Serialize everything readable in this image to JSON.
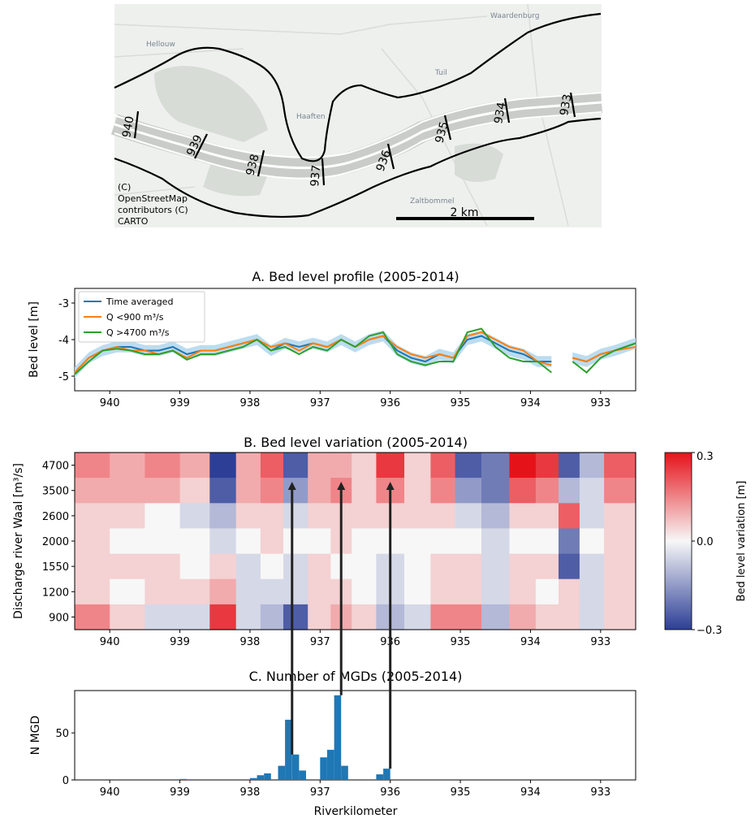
{
  "map": {
    "attribution": [
      "(C)",
      "OpenStreetMap",
      "contributors (C)",
      "CARTO"
    ],
    "scale_label": "2 km",
    "place_names": [
      "Hellouw",
      "Tuil",
      "Waardenburg",
      "Haaften",
      "Zaltbommel"
    ],
    "km_markers": [
      "940",
      "939",
      "938",
      "937",
      "936",
      "935",
      "934",
      "933"
    ]
  },
  "chart_data": [
    {
      "type": "line",
      "title": "A. Bed level profile (2005-2014)",
      "xlabel": "",
      "ylabel": "Bed level [m]",
      "xlim": [
        940.5,
        932.5
      ],
      "ylim": [
        -5.4,
        -2.6
      ],
      "xticks": [
        "940",
        "939",
        "938",
        "937",
        "936",
        "935",
        "934",
        "933"
      ],
      "yticks": [
        "-3",
        "-4",
        "-5"
      ],
      "legend_placement": "top-left",
      "legend": [
        "Time averaged",
        "Q <900 m³/s",
        "Q >4700 m³/s"
      ],
      "colors": {
        "band": "#bcdcef",
        "Time averaged": "#1f77b4",
        "Q <900": "#ff7f0e",
        "Q >4700": "#2ca02c"
      },
      "x": [
        940.5,
        940.3,
        940.1,
        939.9,
        939.7,
        939.5,
        939.3,
        939.1,
        938.9,
        938.7,
        938.5,
        938.3,
        938.1,
        937.9,
        937.7,
        937.5,
        937.3,
        937.1,
        936.9,
        936.7,
        936.5,
        936.3,
        936.1,
        935.9,
        935.7,
        935.5,
        935.3,
        935.1,
        934.9,
        934.7,
        934.5,
        934.3,
        934.1,
        933.9,
        933.7,
        933.6,
        933.4,
        933.2,
        933.0,
        932.8,
        932.5
      ],
      "series": [
        {
          "name": "Time averaged",
          "values": [
            -4.9,
            -4.5,
            -4.3,
            -4.2,
            -4.2,
            -4.3,
            -4.3,
            -4.2,
            -4.4,
            -4.3,
            -4.3,
            -4.2,
            -4.1,
            -4.0,
            -4.3,
            -4.1,
            -4.2,
            -4.1,
            -4.2,
            -4.0,
            -4.2,
            -4.0,
            -3.9,
            -4.3,
            -4.5,
            -4.6,
            -4.4,
            -4.5,
            -4.0,
            -3.9,
            -4.1,
            -4.3,
            -4.4,
            -4.6,
            -4.6,
            null,
            -4.5,
            -4.6,
            -4.4,
            -4.3,
            -4.1
          ]
        },
        {
          "name": "Q <900 m³/s",
          "values": [
            -4.9,
            -4.5,
            -4.3,
            -4.2,
            -4.3,
            -4.3,
            -4.4,
            -4.3,
            -4.5,
            -4.3,
            -4.3,
            -4.2,
            -4.1,
            -4.0,
            -4.2,
            -4.1,
            -4.3,
            -4.1,
            -4.2,
            -4.0,
            -4.2,
            -4.0,
            -3.9,
            -4.2,
            -4.4,
            -4.5,
            -4.4,
            -4.5,
            -3.9,
            -3.8,
            -4.0,
            -4.2,
            -4.3,
            -4.6,
            -4.7,
            null,
            -4.5,
            -4.6,
            -4.4,
            -4.3,
            -4.2
          ]
        },
        {
          "name": "Q >4700 m³/s",
          "values": [
            -4.95,
            -4.6,
            -4.3,
            -4.25,
            -4.3,
            -4.4,
            -4.4,
            -4.3,
            -4.55,
            -4.4,
            -4.4,
            -4.3,
            -4.2,
            -4.0,
            -4.3,
            -4.2,
            -4.4,
            -4.2,
            -4.3,
            -4.0,
            -4.2,
            -3.9,
            -3.8,
            -4.4,
            -4.6,
            -4.7,
            -4.6,
            -4.6,
            -3.8,
            -3.7,
            -4.2,
            -4.5,
            -4.6,
            -4.6,
            -4.9,
            null,
            -4.6,
            -4.9,
            -4.5,
            -4.3,
            -4.1
          ]
        }
      ]
    },
    {
      "type": "heatmap",
      "title": "B. Bed level variation (2005-2014)",
      "xlabel": "",
      "ylabel": "Discharge river Waal [m³/s]",
      "xlim": [
        940.5,
        932.5
      ],
      "xticks": [
        "940",
        "939",
        "938",
        "937",
        "936",
        "935",
        "934",
        "933"
      ],
      "rows": [
        "4700",
        "3500",
        "2600",
        "2000",
        "1550",
        "1200",
        "900"
      ],
      "colorbar": {
        "label": "Bed level variation [m]",
        "ticks": [
          "0.3",
          "0.0",
          "−0.3"
        ],
        "range": [
          -0.3,
          0.3
        ]
      },
      "columns_x": [
        940.25,
        939.75,
        939.25,
        938.75,
        938.4,
        938.0,
        937.7,
        937.35,
        937.0,
        936.7,
        936.4,
        936.0,
        935.6,
        935.25,
        934.9,
        934.5,
        934.1,
        933.75,
        933.45,
        933.15,
        932.75
      ],
      "values": [
        [
          0.15,
          0.1,
          0.15,
          0.1,
          -0.3,
          0.1,
          0.2,
          -0.25,
          0.1,
          0.1,
          0.05,
          0.25,
          0.05,
          0.2,
          -0.25,
          -0.2,
          0.3,
          0.25,
          -0.25,
          -0.1,
          0.2
        ],
        [
          0.1,
          0.1,
          0.1,
          0.05,
          -0.25,
          0.1,
          0.15,
          -0.15,
          0.1,
          0.15,
          0.05,
          0.15,
          0.05,
          0.15,
          -0.15,
          -0.2,
          0.2,
          0.15,
          -0.1,
          -0.05,
          0.15
        ],
        [
          0.05,
          0.05,
          0.0,
          -0.05,
          -0.1,
          0.05,
          0.05,
          -0.05,
          0.05,
          0.05,
          0.05,
          0.05,
          0.05,
          0.05,
          -0.05,
          -0.1,
          0.05,
          0.05,
          0.2,
          -0.05,
          0.05
        ],
        [
          0.05,
          0.0,
          0.0,
          0.0,
          -0.05,
          0.0,
          0.05,
          0.0,
          0.0,
          0.05,
          0.0,
          0.0,
          0.0,
          0.0,
          0.0,
          -0.05,
          0.0,
          0.0,
          -0.2,
          0.0,
          0.05
        ],
        [
          0.05,
          0.05,
          0.05,
          0.0,
          0.05,
          -0.05,
          0.0,
          -0.05,
          0.05,
          0.0,
          0.0,
          -0.05,
          0.0,
          0.05,
          0.05,
          -0.05,
          0.05,
          0.05,
          -0.25,
          -0.05,
          0.05
        ],
        [
          0.05,
          0.0,
          0.05,
          0.05,
          0.1,
          -0.05,
          -0.05,
          -0.05,
          0.05,
          0.05,
          0.0,
          -0.05,
          0.0,
          0.05,
          0.05,
          -0.05,
          0.05,
          0.0,
          0.05,
          -0.05,
          0.05
        ],
        [
          0.15,
          0.05,
          -0.05,
          -0.05,
          0.25,
          -0.05,
          -0.1,
          -0.25,
          0.05,
          0.1,
          0.05,
          -0.1,
          -0.05,
          0.15,
          0.15,
          -0.1,
          0.1,
          0.05,
          0.05,
          -0.05,
          0.05
        ]
      ],
      "annotations": [
        {
          "from": 937.4,
          "to": 937.4
        },
        {
          "from": 936.7,
          "to": 936.7
        },
        {
          "from": 936.0,
          "to": 936.0
        }
      ]
    },
    {
      "type": "bar",
      "title": "C. Number of MGDs (2005-2014)",
      "xlabel": "Riverkilometer",
      "ylabel": "N MGD",
      "xlim": [
        940.5,
        932.5
      ],
      "ylim": [
        0,
        95
      ],
      "xticks": [
        "940",
        "939",
        "938",
        "937",
        "936",
        "935",
        "934",
        "933"
      ],
      "yticks": [
        "0",
        "50"
      ],
      "bar_width_km": 0.1,
      "bars": [
        {
          "x": 938.95,
          "value": 1
        },
        {
          "x": 937.95,
          "value": 2
        },
        {
          "x": 937.85,
          "value": 5
        },
        {
          "x": 937.75,
          "value": 7
        },
        {
          "x": 937.55,
          "value": 15
        },
        {
          "x": 937.45,
          "value": 64
        },
        {
          "x": 937.35,
          "value": 27
        },
        {
          "x": 937.25,
          "value": 10
        },
        {
          "x": 936.95,
          "value": 24
        },
        {
          "x": 936.85,
          "value": 32
        },
        {
          "x": 936.75,
          "value": 90
        },
        {
          "x": 936.65,
          "value": 15
        },
        {
          "x": 936.15,
          "value": 6
        },
        {
          "x": 936.05,
          "value": 12
        }
      ]
    }
  ]
}
